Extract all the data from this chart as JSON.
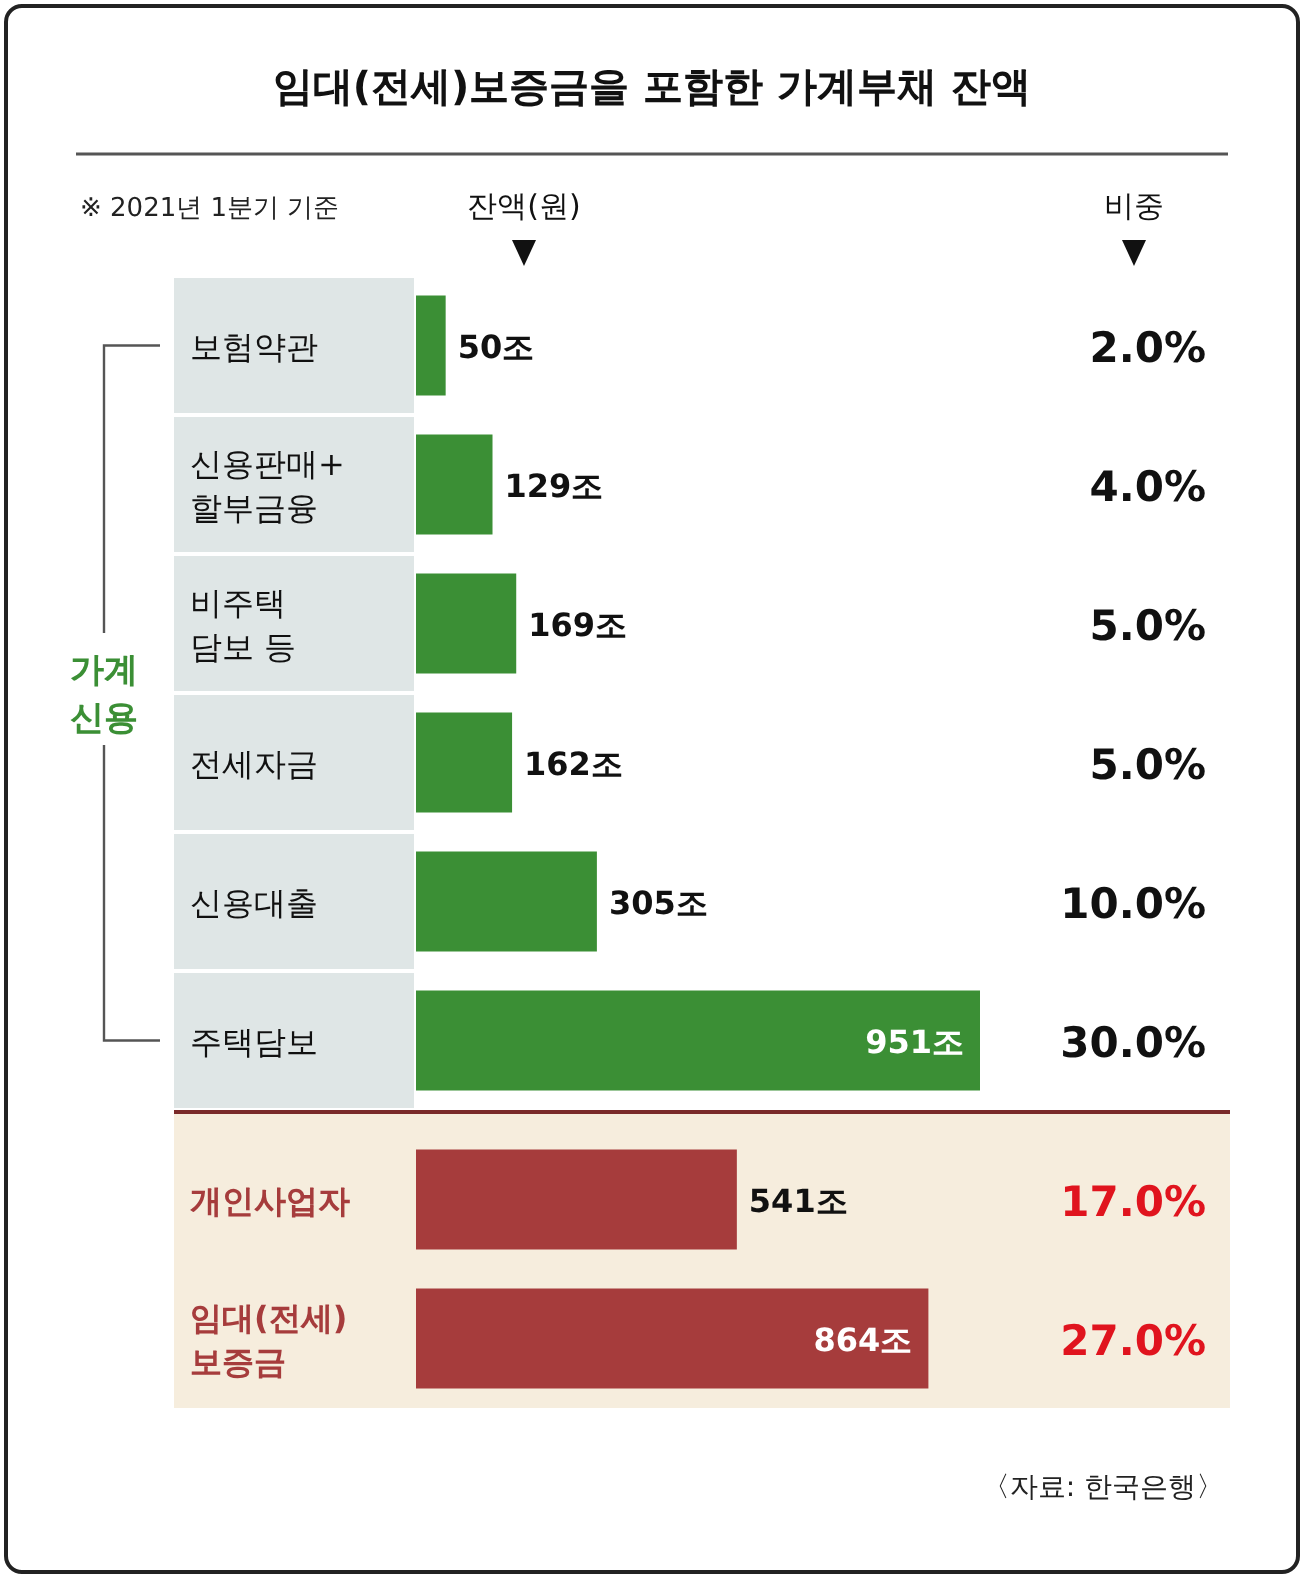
{
  "chart_data": {
    "type": "bar",
    "orientation": "horizontal",
    "title": "임대(전세)보증금을 포함한 가계부채 잔액",
    "subtitle": "※ 2021년 1분기 기준",
    "xlabel": "잔액(원)",
    "categories": [
      "보험약관",
      "신용판매+\n할부금융",
      "비주택\n담보 등",
      "전세자금",
      "신용대출",
      "주택담보",
      "개인사업자",
      "임대(전세)\n보증금"
    ],
    "values": [
      50,
      129,
      169,
      162,
      305,
      951,
      541,
      864
    ],
    "value_labels": [
      "50조",
      "129조",
      "169조",
      "162조",
      "305조",
      "951조",
      "541조",
      "864조"
    ],
    "colors": [
      "#3b8f35",
      "#3b8f35",
      "#3b8f35",
      "#3b8f35",
      "#3b8f35",
      "#3b8f35",
      "#a63c3c",
      "#a63c3c"
    ],
    "annotations": [
      "가계\n신용",
      "비중",
      "2.0%",
      "4.0%",
      "5.0%",
      "5.0%",
      "10.0%",
      "30.0%",
      "17.0%",
      "27.0%",
      "〈자료: 한국은행〉"
    ],
    "bands": [
      {
        "axis": "y",
        "from": "개인사업자",
        "to": "임대(전세)\n보증금",
        "color": "#f6eddd"
      }
    ]
  }
}
